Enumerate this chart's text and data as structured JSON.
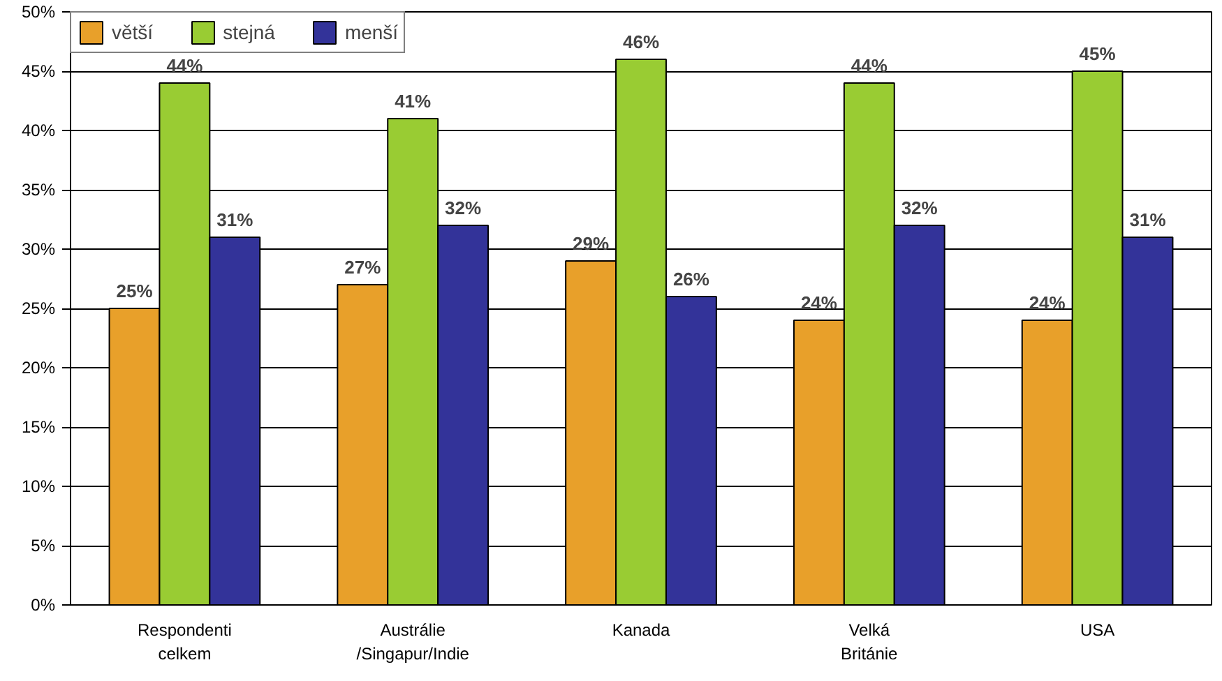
{
  "chart_data": {
    "type": "bar",
    "categories": [
      "Respondenti\ncelkem",
      "Austrálie\n/Singapur/Indie",
      "Kanada",
      "Velká\nBritánie",
      "USA"
    ],
    "series": [
      {
        "name": "větší",
        "color": "#e8a02a",
        "values": [
          25,
          27,
          29,
          24,
          24
        ],
        "value_labels": [
          "25%",
          "27%",
          "29%",
          "24%",
          "24%"
        ]
      },
      {
        "name": "stejná",
        "color": "#99cc33",
        "values": [
          44,
          41,
          46,
          44,
          45
        ],
        "value_labels": [
          "44%",
          "41%",
          "46%",
          "44%",
          "45%"
        ]
      },
      {
        "name": "menší",
        "color": "#333399",
        "values": [
          31,
          32,
          26,
          32,
          31
        ],
        "value_labels": [
          "31%",
          "32%",
          "26%",
          "32%",
          "31%"
        ]
      }
    ],
    "ylim": [
      0,
      50
    ],
    "yticks": [
      {
        "value": 0,
        "label": "0%"
      },
      {
        "value": 5,
        "label": "5%"
      },
      {
        "value": 10,
        "label": "10%"
      },
      {
        "value": 15,
        "label": "15%"
      },
      {
        "value": 20,
        "label": "20%"
      },
      {
        "value": 25,
        "label": "25%"
      },
      {
        "value": 30,
        "label": "30%"
      },
      {
        "value": 35,
        "label": "35%"
      },
      {
        "value": 40,
        "label": "40%"
      },
      {
        "value": 45,
        "label": "45%"
      },
      {
        "value": 50,
        "label": "50%"
      }
    ],
    "grid": "y",
    "legend": "top left"
  }
}
